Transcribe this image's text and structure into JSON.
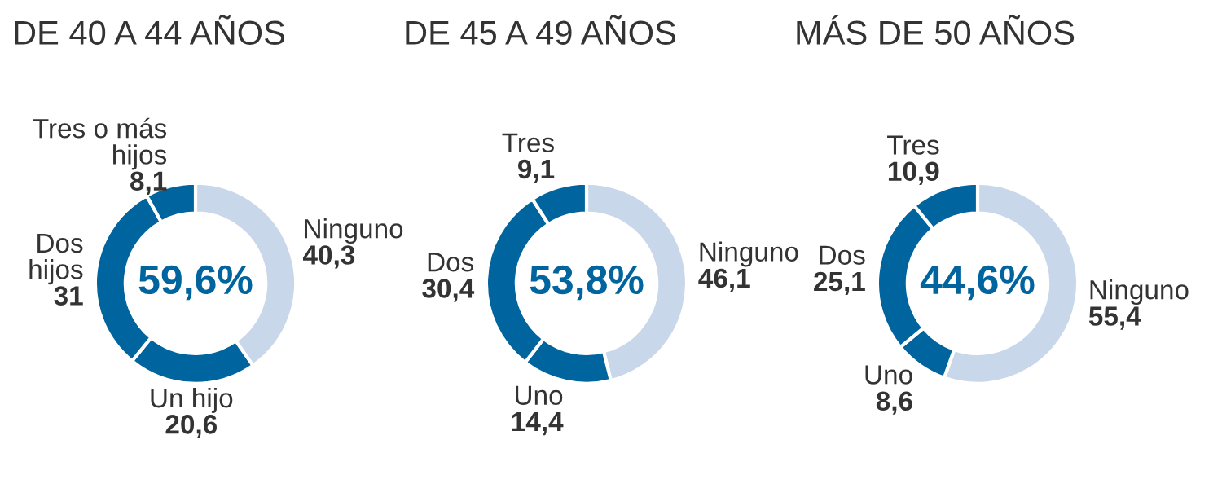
{
  "chart_data": [
    {
      "type": "donut",
      "title": "DE 40 A 44 AÑOS",
      "categories": [
        "Ninguno",
        "Un hijo",
        "Dos hijos",
        "Tres o más hijos"
      ],
      "values": [
        40.3,
        20.6,
        31,
        8.1
      ],
      "value_labels": [
        "40,3",
        "20,6",
        "31",
        "8,1"
      ],
      "colors": [
        "#c9d7ea",
        "#00649f",
        "#00649f",
        "#00649f"
      ],
      "annotations": [
        "59,6%"
      ]
    },
    {
      "type": "donut",
      "title": "DE 45 A 49 AÑOS",
      "categories": [
        "Ninguno",
        "Uno",
        "Dos",
        "Tres"
      ],
      "values": [
        46.1,
        14.4,
        30.4,
        9.1
      ],
      "value_labels": [
        "46,1",
        "14,4",
        "30,4",
        "9,1"
      ],
      "colors": [
        "#c9d7ea",
        "#00649f",
        "#00649f",
        "#00649f"
      ],
      "annotations": [
        "53,8%"
      ]
    },
    {
      "type": "donut",
      "title": "MÁS DE 50 AÑOS",
      "categories": [
        "Ninguno",
        "Uno",
        "Dos",
        "Tres"
      ],
      "values": [
        55.4,
        8.6,
        25.1,
        10.9
      ],
      "value_labels": [
        "55,4",
        "8,6",
        "25,1",
        "10,9"
      ],
      "colors": [
        "#c9d7ea",
        "#00649f",
        "#00649f",
        "#00649f"
      ],
      "annotations": [
        "44,6%"
      ]
    }
  ]
}
